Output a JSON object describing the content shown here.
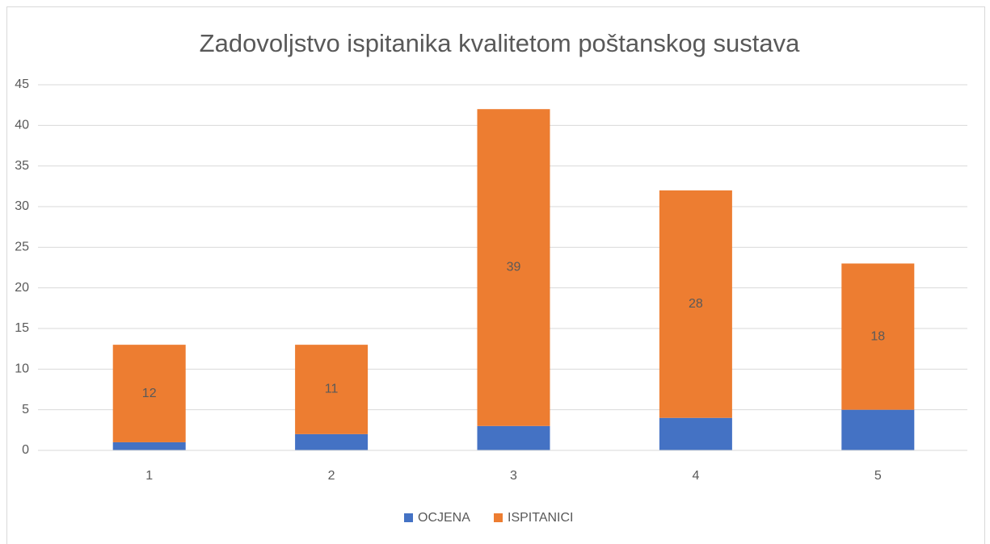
{
  "chart_data": {
    "type": "stacked_bar",
    "title": "Zadovoljstvo ispitanika kvalitetom poštanskog sustava",
    "categories": [
      "1",
      "2",
      "3",
      "4",
      "5"
    ],
    "series": [
      {
        "name": "OCJENA",
        "color": "#4472c4",
        "values": [
          1,
          2,
          3,
          4,
          5
        ],
        "data_labels": false
      },
      {
        "name": "ISPITANICI",
        "color": "#ed7d31",
        "values": [
          12,
          11,
          39,
          28,
          18
        ],
        "data_labels": true
      }
    ],
    "ylim": [
      0,
      45
    ],
    "yticks": [
      0,
      5,
      10,
      15,
      20,
      25,
      30,
      35,
      40,
      45
    ],
    "grid": true,
    "legend": "bottom"
  }
}
